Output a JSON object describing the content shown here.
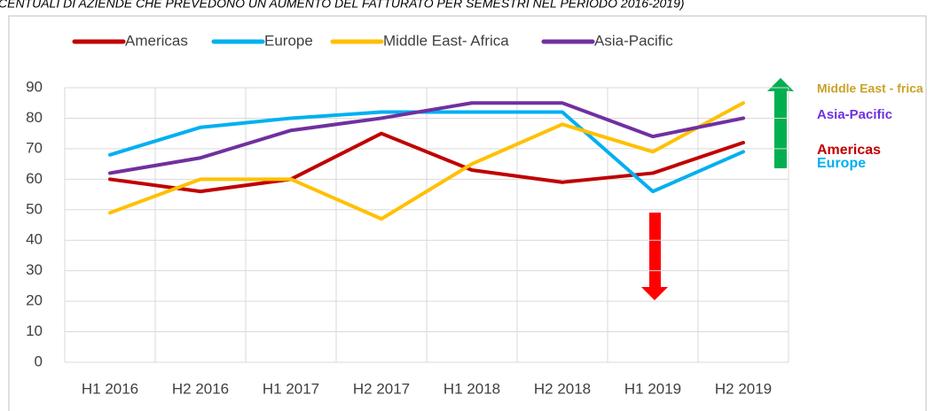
{
  "chart_data": {
    "type": "line",
    "title": "CENTUALI DI AZIENDE CHE PREVEDONO UN AUMENTO DEL FATTURATO PER SEMESTRI NEL PERIODO 2016-2019)",
    "categories": [
      "H1 2016",
      "H2 2016",
      "H1 2017",
      "H2 2017",
      "H1 2018",
      "H2 2018",
      "H1 2019",
      "H2 2019"
    ],
    "series": [
      {
        "name": "Americas",
        "color": "#c00000",
        "values": [
          60,
          56,
          60,
          75,
          63,
          59,
          62,
          72
        ]
      },
      {
        "name": "Europe",
        "color": "#00b0f0",
        "values": [
          68,
          77,
          80,
          82,
          82,
          82,
          56,
          69
        ]
      },
      {
        "name": "Middle East- Africa",
        "color": "#ffc000",
        "values": [
          49,
          60,
          60,
          47,
          65,
          78,
          69,
          85
        ]
      },
      {
        "name": "Asia-Pacific",
        "color": "#7030a0",
        "values": [
          62,
          67,
          76,
          80,
          85,
          85,
          74,
          80
        ]
      }
    ],
    "ylim": [
      0,
      90
    ],
    "yticks": [
      0,
      10,
      20,
      30,
      40,
      50,
      60,
      70,
      80,
      90
    ],
    "grid": true,
    "legend": "top",
    "annotations": [
      {
        "text": "Middle East - frica",
        "color": "#c9a227"
      },
      {
        "text": "Asia-Pacific",
        "color": "#7030e0"
      },
      {
        "text": "Americas",
        "color": "#c00000"
      },
      {
        "text": "Europe",
        "color": "#00b0f0"
      }
    ]
  }
}
